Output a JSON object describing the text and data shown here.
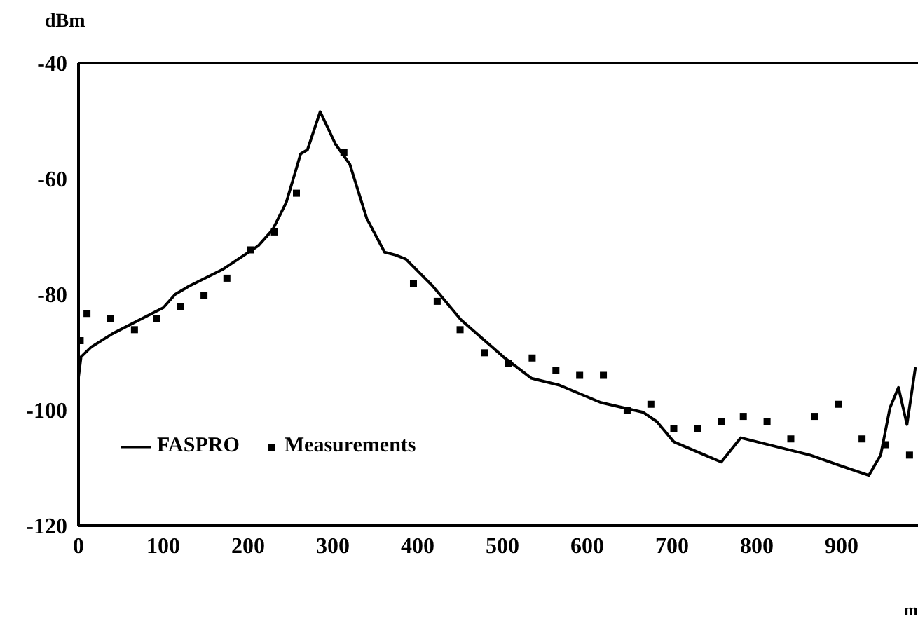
{
  "chart_data": {
    "type": "line",
    "ylabel": "dBm",
    "xlabel": "m",
    "xlim": [
      0,
      990
    ],
    "xticks": [
      0,
      100,
      200,
      300,
      400,
      500,
      600,
      700,
      800,
      900
    ],
    "ylim": [
      -120,
      -40
    ],
    "yticks": [
      -120,
      -100,
      -80,
      -60,
      -40
    ],
    "grid": false,
    "legend": "bottom left",
    "series": [
      {
        "name": "FASPRO",
        "color": "#000000",
        "marker": "none",
        "line_style": "solid",
        "x": [
          0,
          3,
          15,
          40,
          72,
          100,
          114,
          130,
          171,
          212,
          229,
          245,
          262,
          270,
          285,
          303,
          320,
          340,
          361,
          374,
          386,
          418,
          451,
          501,
          534,
          567,
          616,
          666,
          682,
          702,
          758,
          781,
          863,
          896,
          932,
          946,
          957,
          967,
          977,
          987
        ],
        "values": [
          -94.3,
          -90.8,
          -89.1,
          -86.8,
          -84.4,
          -82.3,
          -80,
          -78.6,
          -75.6,
          -71.6,
          -68.8,
          -64.1,
          -55.7,
          -55,
          -48.4,
          -54,
          -57.5,
          -66.9,
          -72.7,
          -73.2,
          -73.9,
          -78.6,
          -84.4,
          -90.8,
          -94.5,
          -95.7,
          -98.7,
          -100.4,
          -102,
          -105.5,
          -109,
          -104.8,
          -107.8,
          -109.5,
          -111.3,
          -107.8,
          -99.6,
          -96.1,
          -102.5,
          -92.6
        ]
      },
      {
        "name": "Measurements",
        "type": "scatter",
        "color": "#000000",
        "marker": "square",
        "x": [
          2,
          10,
          38,
          66,
          92,
          120,
          148,
          175,
          203,
          231,
          257,
          313,
          395,
          423,
          450,
          479,
          507,
          535,
          563,
          591,
          619,
          647,
          675,
          702,
          730,
          758,
          784,
          812,
          840,
          868,
          896,
          924,
          952,
          980
        ],
        "values": [
          -88.0,
          -83.3,
          -84.2,
          -86.1,
          -84.2,
          -82.1,
          -80.2,
          -77.2,
          -72.3,
          -69.2,
          -62.5,
          -55.4,
          -78.1,
          -81.2,
          -86.1,
          -90.1,
          -91.9,
          -91.0,
          -93.1,
          -94.0,
          -94.0,
          -100.1,
          -99.0,
          -103.2,
          -103.2,
          -102.0,
          -101.1,
          -102.0,
          -105.0,
          -101.1,
          -99.0,
          -105.0,
          -106.0,
          -107.8
        ]
      }
    ]
  }
}
